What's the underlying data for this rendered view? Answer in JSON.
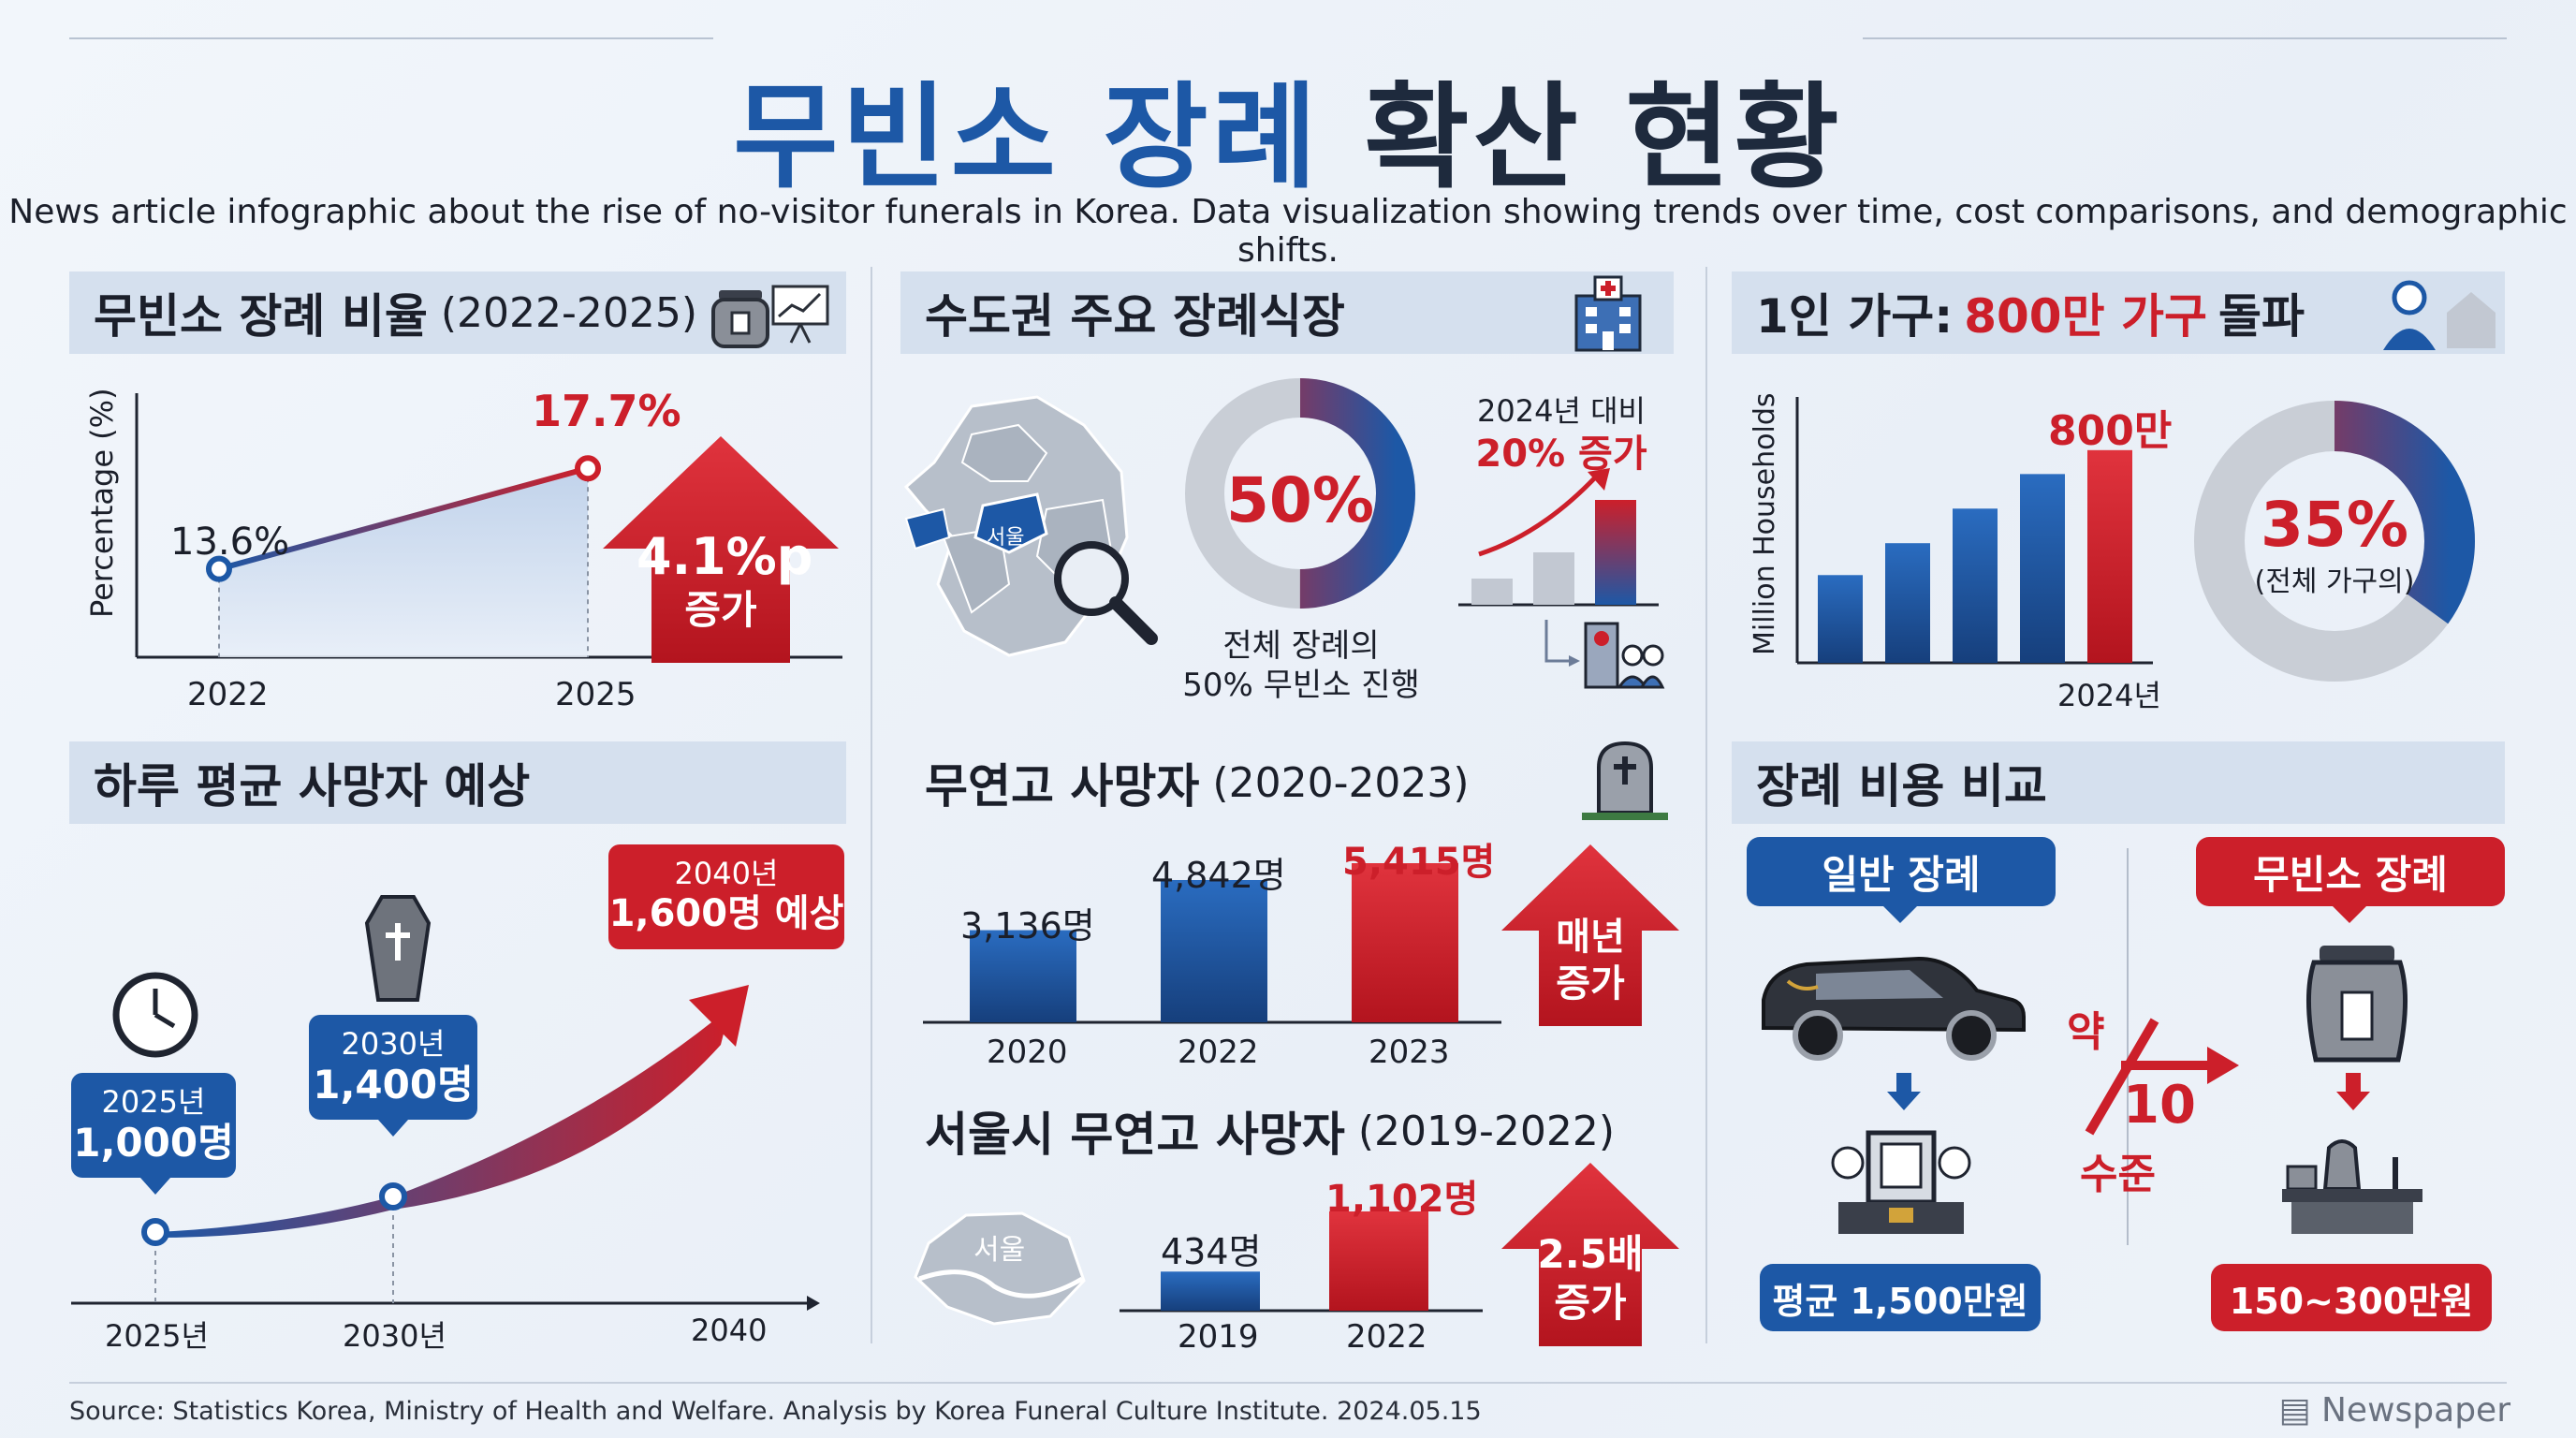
{
  "title": {
    "part1": "무빈소 장례",
    "part2": "확산 현황"
  },
  "subtitle": "News article infographic about the rise of no-visitor funerals in Korea. Data visualization showing trends over time, cost comparisons, and demographic shifts.",
  "colors": {
    "blue": "#1d58a6",
    "red": "#cc1f2a",
    "header_bg": "#d5e0ee",
    "gray": "#c9ced6"
  },
  "sections": {
    "ratio": {
      "title": "무빈소 장례 비율",
      "period": "(2022-2025)",
      "ylabel": "Percentage (%)",
      "badge_line1": "4.1%p",
      "badge_line2": "증가"
    },
    "capital": {
      "title": "수도권 주요 장례식장",
      "seoul_label": "서울",
      "donut_label": "50%",
      "caption_line1": "전체 장례의",
      "caption_line2": "50% 무빈소 진행",
      "growth_line1": "2024년 대비",
      "growth_line2": "20% 증가"
    },
    "single": {
      "title_prefix": "1인 가구:",
      "title_highlight": "800만 가구",
      "title_suffix": "돌파",
      "ylabel": "Million Households",
      "top_label": "800만",
      "x_label": "2024년",
      "donut_value": "35%",
      "donut_caption": "(전체 가구의)"
    },
    "daily": {
      "title": "하루 평균 사망자 예상"
    },
    "unclaimed": {
      "title": "무연고 사망자",
      "period": "(2020-2023)",
      "badge_line1": "매년",
      "badge_line2": "증가"
    },
    "seoul_unclaimed": {
      "title": "서울시 무연고 사망자",
      "period": "(2019-2022)",
      "map_label": "서울",
      "badge_line1": "2.5배",
      "badge_line2": "증가"
    },
    "cost": {
      "title": "장례 비용 비교",
      "normal_label": "일반 장례",
      "novisit_label": "무빈소 장례",
      "normal_cost": "평균 1,500만원",
      "novisit_cost": "150~300만원",
      "ratio_top": "약",
      "ratio_num": "10",
      "ratio_bottom": "수준"
    }
  },
  "chart_data": [
    {
      "type": "line",
      "title": "무빈소 장례 비율 (2022-2025)",
      "ylabel": "Percentage (%)",
      "x": [
        "2022",
        "2025"
      ],
      "series": [
        {
          "values": [
            13.6,
            17.7
          ]
        }
      ],
      "value_labels": [
        "13.6%",
        "17.7%"
      ]
    },
    {
      "type": "pie",
      "title": "수도권 주요 장례식장",
      "slices": [
        {
          "label": "무빈소",
          "value": 50
        },
        {
          "label": "",
          "value": 50
        }
      ],
      "center_label": "50%"
    },
    {
      "type": "bar",
      "title": "2024년 대비 20% 증가",
      "categories": [
        "",
        "",
        ""
      ],
      "values": [
        1,
        2,
        4
      ]
    },
    {
      "type": "bar",
      "title": "1인 가구: 800만 가구 돌파",
      "ylabel": "Million Households",
      "categories": [
        "",
        "",
        "",
        "",
        "2024년"
      ],
      "values": [
        3.3,
        4.5,
        5.8,
        7.1,
        8.0
      ],
      "top_label": "800만"
    },
    {
      "type": "pie",
      "title": "1인 가구 비율",
      "slices": [
        {
          "label": "1인 가구",
          "value": 35
        },
        {
          "label": "",
          "value": 65
        }
      ],
      "center_label": "35%",
      "caption": "(전체 가구의)"
    },
    {
      "type": "line",
      "title": "하루 평균 사망자 예상",
      "x": [
        "2025년",
        "2030년",
        "2040"
      ],
      "series": [
        {
          "values": [
            1000,
            1400,
            1600
          ]
        }
      ],
      "callouts": [
        {
          "year": "2025년",
          "value": "1,000명"
        },
        {
          "year": "2030년",
          "value": "1,400명"
        },
        {
          "year": "2040년",
          "value": "1,600명 예상"
        }
      ]
    },
    {
      "type": "bar",
      "title": "무연고 사망자 (2020-2023)",
      "categories": [
        "2020",
        "2022",
        "2023"
      ],
      "values": [
        3136,
        4842,
        5415
      ],
      "value_labels": [
        "3,136명",
        "4,842명",
        "5,415명"
      ]
    },
    {
      "type": "bar",
      "title": "서울시 무연고 사망자 (2019-2022)",
      "categories": [
        "2019",
        "2022"
      ],
      "values": [
        434,
        1102
      ],
      "value_labels": [
        "434명",
        "1,102명"
      ]
    }
  ],
  "footer": {
    "source": "Source: Statistics Korea, Ministry of Health and Welfare. Analysis by Korea Funeral Culture Institute. 2024.05.15",
    "brand": "Newspaper"
  }
}
